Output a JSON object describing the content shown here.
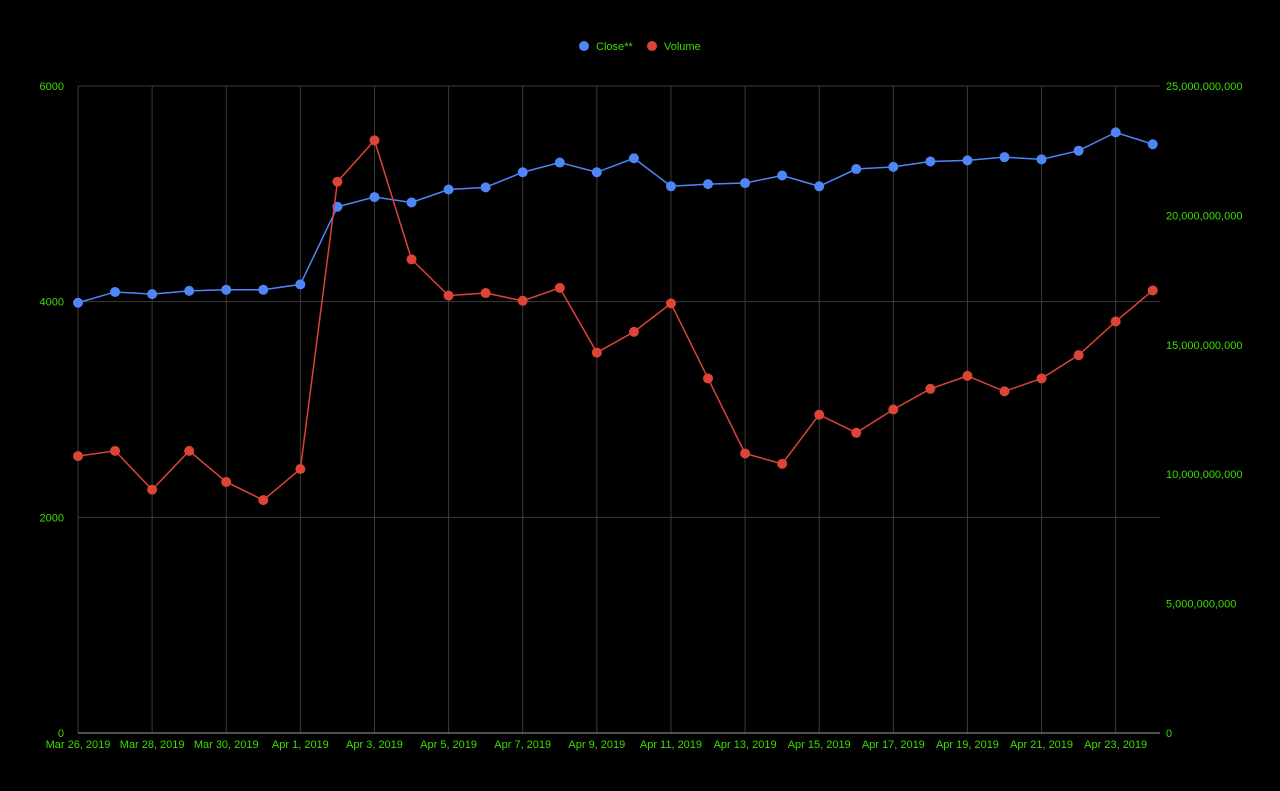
{
  "chart_data": {
    "type": "line",
    "title": "",
    "xlabel": "",
    "ylabel": "",
    "legend_position": "top",
    "grid": true,
    "colors": {
      "background": "#000000",
      "grid": "#3a3a3a",
      "axis": "#9e9e9e",
      "tick_label": "#3ddc00"
    },
    "x": [
      "Mar 26, 2019",
      "Mar 27, 2019",
      "Mar 28, 2019",
      "Mar 29, 2019",
      "Mar 30, 2019",
      "Mar 31, 2019",
      "Apr 1, 2019",
      "Apr 2, 2019",
      "Apr 3, 2019",
      "Apr 4, 2019",
      "Apr 5, 2019",
      "Apr 6, 2019",
      "Apr 7, 2019",
      "Apr 8, 2019",
      "Apr 9, 2019",
      "Apr 10, 2019",
      "Apr 11, 2019",
      "Apr 12, 2019",
      "Apr 13, 2019",
      "Apr 14, 2019",
      "Apr 15, 2019",
      "Apr 16, 2019",
      "Apr 17, 2019",
      "Apr 18, 2019",
      "Apr 19, 2019",
      "Apr 20, 2019",
      "Apr 21, 2019",
      "Apr 22, 2019",
      "Apr 23, 2019",
      "Apr 24, 2019"
    ],
    "x_tick_labels": [
      "Mar 26, 2019",
      "Mar 28, 2019",
      "Mar 30, 2019",
      "Apr 1, 2019",
      "Apr 3, 2019",
      "Apr 5, 2019",
      "Apr 7, 2019",
      "Apr 9, 2019",
      "Apr 11, 2019",
      "Apr 13, 2019",
      "Apr 15, 2019",
      "Apr 17, 2019",
      "Apr 19, 2019",
      "Apr 21, 2019",
      "Apr 23, 2019"
    ],
    "y_left": {
      "ylim": [
        0,
        6000
      ],
      "ticks": [
        0,
        2000,
        4000,
        6000
      ],
      "tick_labels": [
        "0",
        "2000",
        "4000",
        "6000"
      ]
    },
    "y_right": {
      "ylim": [
        0,
        25000000000
      ],
      "ticks": [
        0,
        5000000000,
        10000000000,
        15000000000,
        20000000000,
        25000000000
      ],
      "tick_labels": [
        "0",
        "5,000,000,000",
        "10,000,000,000",
        "15,000,000,000",
        "20,000,000,000",
        "25,000,000,000"
      ]
    },
    "series": [
      {
        "name": "Close**",
        "axis": "left",
        "color": "#4f86f7",
        "values": [
          3990,
          4090,
          4070,
          4100,
          4110,
          4110,
          4160,
          4880,
          4970,
          4920,
          5040,
          5060,
          5200,
          5290,
          5200,
          5330,
          5070,
          5090,
          5100,
          5170,
          5070,
          5230,
          5250,
          5300,
          5310,
          5340,
          5320,
          5400,
          5570,
          5460
        ]
      },
      {
        "name": "Volume",
        "axis": "right",
        "color": "#db4437",
        "values": [
          10700000000,
          10900000000,
          9400000000,
          10900000000,
          9700000000,
          9000000000,
          10200000000,
          21300000000,
          22900000000,
          18300000000,
          16900000000,
          17000000000,
          16700000000,
          17200000000,
          14700000000,
          15500000000,
          16600000000,
          13700000000,
          10800000000,
          10400000000,
          12300000000,
          11600000000,
          12500000000,
          13300000000,
          13800000000,
          13200000000,
          13700000000,
          14600000000,
          15900000000,
          17100000000
        ]
      }
    ]
  }
}
